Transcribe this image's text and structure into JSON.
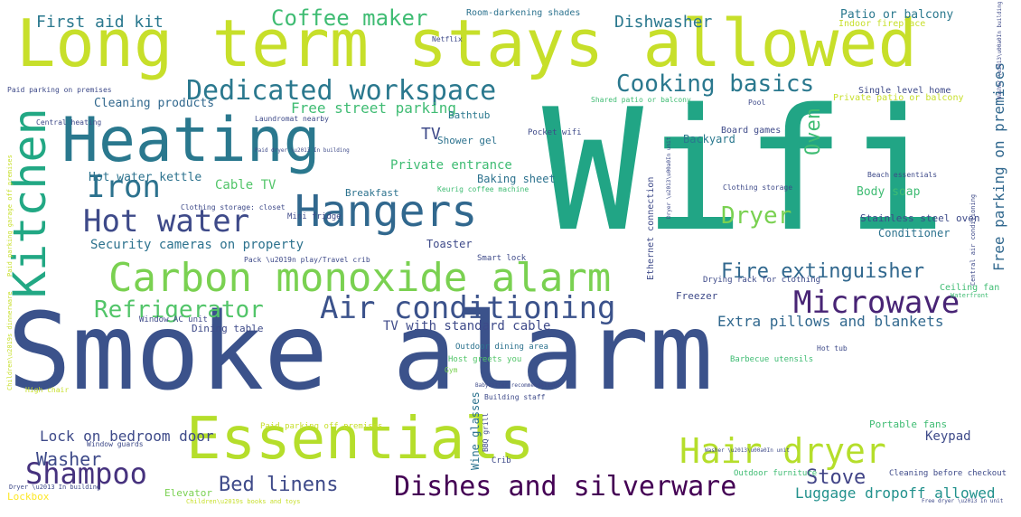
{
  "word_cloud": {
    "words": [
      {
        "text": "Smoke alarm",
        "color": "#3b528b"
      },
      {
        "text": "Wifi",
        "color": "#21a585"
      },
      {
        "text": "Long term stays allowed",
        "color": "#c7df2a"
      },
      {
        "text": "Heating",
        "color": "#2a788e"
      },
      {
        "text": "Essentials",
        "color": "#b5de2b"
      },
      {
        "text": "Carbon monoxide alarm",
        "color": "#7ad151"
      },
      {
        "text": "Kitchen",
        "color": "#22a884"
      },
      {
        "text": "Hangers",
        "color": "#31688e"
      },
      {
        "text": "Dedicated workspace",
        "color": "#2a788e"
      },
      {
        "text": "Air conditioning",
        "color": "#3b528b"
      },
      {
        "text": "Hot water",
        "color": "#3e4a89"
      },
      {
        "text": "Iron",
        "color": "#2c728e"
      },
      {
        "text": "Hair dryer",
        "color": "#b5de2b"
      },
      {
        "text": "Dishes and silverware",
        "color": "#440154"
      },
      {
        "text": "Shampoo",
        "color": "#46327e"
      },
      {
        "text": "Microwave",
        "color": "#482475"
      },
      {
        "text": "Refrigerator",
        "color": "#52c569"
      },
      {
        "text": "Cooking basics",
        "color": "#2a788e"
      },
      {
        "text": "Coffee maker",
        "color": "#3fbc73"
      },
      {
        "text": "Dryer",
        "color": "#7ad151"
      },
      {
        "text": "Fire extinguisher",
        "color": "#31688e"
      },
      {
        "text": "Oven",
        "color": "#3fbc73"
      },
      {
        "text": "Free parking on premises",
        "color": "#31688e"
      },
      {
        "text": "Washer",
        "color": "#3e4a89"
      },
      {
        "text": "Bed linens",
        "color": "#3e4a89"
      },
      {
        "text": "Stove",
        "color": "#414487"
      },
      {
        "text": "First aid kit",
        "color": "#2a788e"
      },
      {
        "text": "Dishwasher",
        "color": "#2a788e"
      },
      {
        "text": "Extra pillows and blankets",
        "color": "#31688e"
      },
      {
        "text": "Free street parking",
        "color": "#3fbc73"
      },
      {
        "text": "Luggage dropoff allowed",
        "color": "#21918c"
      },
      {
        "text": "Lock on bedroom door",
        "color": "#3e4a89"
      },
      {
        "text": "TV with standard cable",
        "color": "#3e4a89"
      },
      {
        "text": "Private entrance",
        "color": "#3fbc73"
      },
      {
        "text": "Security cameras on property",
        "color": "#2c728e"
      },
      {
        "text": "Hot water kettle",
        "color": "#2c728e"
      },
      {
        "text": "Cleaning products",
        "color": "#31688e"
      },
      {
        "text": "TV",
        "color": "#3e4a89"
      },
      {
        "text": "Cable TV",
        "color": "#52c569"
      },
      {
        "text": "Keypad",
        "color": "#3e4a89"
      },
      {
        "text": "Patio or balcony",
        "color": "#2a788e"
      },
      {
        "text": "Body soap",
        "color": "#3fbc73"
      },
      {
        "text": "Backyard",
        "color": "#2a788e"
      },
      {
        "text": "Conditioner",
        "color": "#2c728e"
      },
      {
        "text": "Toaster",
        "color": "#3e4a89"
      },
      {
        "text": "Baking sheet",
        "color": "#2c728e"
      },
      {
        "text": "Elevator",
        "color": "#7ad151"
      },
      {
        "text": "Portable fans",
        "color": "#3fbc73"
      },
      {
        "text": "Dining table",
        "color": "#3e4a89"
      },
      {
        "text": "Freezer",
        "color": "#3e4a89"
      },
      {
        "text": "Bathtub",
        "color": "#2a788e"
      },
      {
        "text": "Breakfast",
        "color": "#2c728e"
      },
      {
        "text": "Shower gel",
        "color": "#2c728e"
      },
      {
        "text": "Lockbox",
        "color": "#fde725"
      },
      {
        "text": "Wine glasses",
        "color": "#2c728e"
      },
      {
        "text": "Stainless steel oven",
        "color": "#3e4a89"
      },
      {
        "text": "Indoor fireplace",
        "color": "#c7df2a"
      },
      {
        "text": "Room-darkening shades",
        "color": "#2c728e"
      },
      {
        "text": "Ceiling fan",
        "color": "#3fbc73"
      },
      {
        "text": "Single level home",
        "color": "#3e4a89"
      },
      {
        "text": "Board games",
        "color": "#3e4a89"
      },
      {
        "text": "Private patio or balcony",
        "color": "#c7df2a"
      },
      {
        "text": "Ethernet connection",
        "color": "#3e4a89"
      },
      {
        "text": "Mini fridge",
        "color": "#3e4a89"
      },
      {
        "text": "Pocket wifi",
        "color": "#3e4a89"
      },
      {
        "text": "Drying rack for clothing",
        "color": "#3e4a89"
      },
      {
        "text": "Outdoor dining area",
        "color": "#2c728e"
      },
      {
        "text": "Cleaning before checkout",
        "color": "#3e4a89"
      },
      {
        "text": "Window AC unit",
        "color": "#3e4a89"
      },
      {
        "text": "Crib",
        "color": "#3e4a89"
      },
      {
        "text": "Smart lock",
        "color": "#3e4a89"
      },
      {
        "text": "Host greets you",
        "color": "#52c569"
      },
      {
        "text": "Barbecue utensils",
        "color": "#3fbc73"
      },
      {
        "text": "Outdoor furniture",
        "color": "#3fbc73"
      },
      {
        "text": "Paid parking off premises",
        "color": "#c7df2a"
      },
      {
        "text": "Building staff",
        "color": "#3e4a89"
      },
      {
        "text": "Gym",
        "color": "#7ad151"
      },
      {
        "text": "Keurig coffee machine",
        "color": "#3fbc73"
      },
      {
        "text": "Clothing storage: closet",
        "color": "#3e4a89"
      },
      {
        "text": "Clothing storage",
        "color": "#3e4a89"
      },
      {
        "text": "Beach essentials",
        "color": "#3e4a89"
      },
      {
        "text": "Window guards",
        "color": "#3e4a89"
      },
      {
        "text": "BBQ grill",
        "color": "#3e4a89"
      },
      {
        "text": "Hot tub",
        "color": "#3e4a89"
      },
      {
        "text": "Pool",
        "color": "#3e4a89"
      },
      {
        "text": "Laundromat nearby",
        "color": "#3e4a89"
      },
      {
        "text": "Paid parking on premises",
        "color": "#3e4a89"
      },
      {
        "text": "Central heating",
        "color": "#3e4a89"
      },
      {
        "text": "Shared patio or balcony",
        "color": "#3fbc73"
      },
      {
        "text": "Netflix",
        "color": "#3e4a89"
      },
      {
        "text": "High chair",
        "color": "#c7df2a"
      },
      {
        "text": "Waterfront",
        "color": "#3fbc73"
      },
      {
        "text": "Pack \\u2019n play/Travel crib",
        "color": "#3e4a89"
      },
      {
        "text": "Dryer \\u2013 In building",
        "color": "#3e4a89"
      },
      {
        "text": "Children\\u2019s books and toys",
        "color": "#c7df2a"
      },
      {
        "text": "Central air conditioning",
        "color": "#3e4a89"
      },
      {
        "text": "Paid parking garage off premises",
        "color": "#c7df2a"
      },
      {
        "text": "Children\\u2019s dinnerware",
        "color": "#c7df2a"
      },
      {
        "text": "Paid dryer \\u2013 In building",
        "color": "#3e4a89"
      },
      {
        "text": "Dryer \\u2013\\u00a0In unit",
        "color": "#3e4a89"
      },
      {
        "text": "Washer \\u2013\\u00a0In building",
        "color": "#3e4a89"
      },
      {
        "text": "Washer \\u2013\\u00a0In unit",
        "color": "#3e4a89"
      },
      {
        "text": "Free dryer \\u2013 In unit",
        "color": "#3e4a89"
      },
      {
        "text": "Babysitter recommendations",
        "color": "#3e4a89"
      }
    ]
  }
}
